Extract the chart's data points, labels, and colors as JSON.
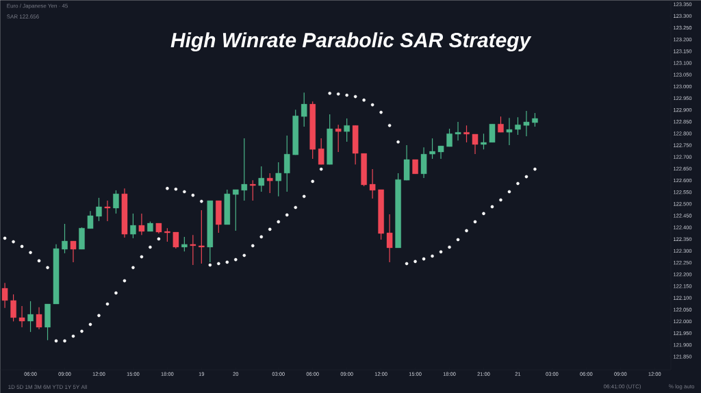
{
  "chart_data": {
    "type": "candlestick",
    "title": "High Winrate Parabolic SAR Strategy",
    "subtitle": "Euro / Japanese Yen · 45",
    "annotations": [
      "SAR 122.656",
      "1D  5D  1M  3M  6M  YTD  1Y  5Y  All",
      "06:41:00 (UTC)",
      "%  log  auto"
    ],
    "categories": [
      null,
      null,
      null,
      "06:00",
      null,
      null,
      null,
      "09:00",
      null,
      null,
      null,
      "12:00",
      null,
      null,
      null,
      "15:00",
      null,
      null,
      null,
      "18:00",
      null,
      null,
      null,
      "19",
      null,
      null,
      null,
      "20",
      null,
      null,
      null,
      null,
      "03:00",
      null,
      null,
      null,
      "06:00",
      null,
      null,
      null,
      "09:00",
      null,
      null,
      null,
      "12:00",
      null,
      null,
      null,
      "15:00",
      null,
      null,
      null,
      "18:00",
      null,
      null,
      null,
      "21:00",
      null,
      null,
      null,
      "21",
      null,
      null,
      null,
      "03:00",
      null,
      null,
      null,
      "06:00",
      null,
      null,
      null,
      "09:00",
      null,
      null,
      null,
      "12:00"
    ],
    "ohlc": [
      [
        122.141,
        122.164,
        122.057,
        122.089
      ],
      [
        122.089,
        122.115,
        122.0,
        122.016
      ],
      [
        122.016,
        122.065,
        121.975,
        122.001
      ],
      [
        122.001,
        122.086,
        121.955,
        122.03
      ],
      [
        122.03,
        122.06,
        121.966,
        121.975
      ],
      [
        121.975,
        122.074,
        121.92,
        122.074
      ],
      [
        122.074,
        122.328,
        122.074,
        122.31
      ],
      [
        122.307,
        122.415,
        122.29,
        122.342
      ],
      [
        122.342,
        122.342,
        122.252,
        122.307
      ],
      [
        122.307,
        122.4,
        122.307,
        122.397
      ],
      [
        122.395,
        122.47,
        122.395,
        122.45
      ],
      [
        122.447,
        122.526,
        122.427,
        122.488
      ],
      [
        122.488,
        122.514,
        122.427,
        122.482
      ],
      [
        122.482,
        122.558,
        122.459,
        122.543
      ],
      [
        122.543,
        122.566,
        122.357,
        122.371
      ],
      [
        122.371,
        122.459,
        122.354,
        122.409
      ],
      [
        122.409,
        122.459,
        122.368,
        122.383
      ],
      [
        122.383,
        122.425,
        122.383,
        122.418
      ],
      [
        122.418,
        122.418,
        122.374,
        122.38
      ],
      [
        122.383,
        122.397,
        122.339,
        122.377
      ],
      [
        122.38,
        122.38,
        122.31,
        122.316
      ],
      [
        122.316,
        122.36,
        122.298,
        122.328
      ],
      [
        122.328,
        122.368,
        122.24,
        122.322
      ],
      [
        122.322,
        122.473,
        122.246,
        122.316
      ],
      [
        122.316,
        122.514,
        122.252,
        122.514
      ],
      [
        122.514,
        122.514,
        122.377,
        122.412
      ],
      [
        122.412,
        122.561,
        122.412,
        122.543
      ],
      [
        122.54,
        122.561,
        122.386,
        122.561
      ],
      [
        122.558,
        122.779,
        122.514,
        122.584
      ],
      [
        122.584,
        122.601,
        122.514,
        122.578
      ],
      [
        122.578,
        122.66,
        122.552,
        122.61
      ],
      [
        122.61,
        122.631,
        122.546,
        122.598
      ],
      [
        122.598,
        122.677,
        122.532,
        122.631
      ],
      [
        122.631,
        122.791,
        122.552,
        122.712
      ],
      [
        122.709,
        122.901,
        122.709,
        122.875
      ],
      [
        122.872,
        122.974,
        122.829,
        122.925
      ],
      [
        122.925,
        122.936,
        122.692,
        122.732
      ],
      [
        122.735,
        122.779,
        122.668,
        122.668
      ],
      [
        122.668,
        122.881,
        122.668,
        122.82
      ],
      [
        122.82,
        122.837,
        122.721,
        122.808
      ],
      [
        122.808,
        122.864,
        122.765,
        122.834
      ],
      [
        122.834,
        122.834,
        122.668,
        122.715
      ],
      [
        122.715,
        122.715,
        122.575,
        122.581
      ],
      [
        122.584,
        122.648,
        122.523,
        122.558
      ],
      [
        122.561,
        122.561,
        122.348,
        122.374
      ],
      [
        122.377,
        122.456,
        122.252,
        122.313
      ],
      [
        122.313,
        122.631,
        122.313,
        122.604
      ],
      [
        122.601,
        122.75,
        122.601,
        122.689
      ],
      [
        122.689,
        122.689,
        122.628,
        122.628
      ],
      [
        122.628,
        122.741,
        122.61,
        122.712
      ],
      [
        122.712,
        122.779,
        122.692,
        122.724
      ],
      [
        122.721,
        122.747,
        122.692,
        122.747
      ],
      [
        122.744,
        122.82,
        122.744,
        122.799
      ],
      [
        122.797,
        122.849,
        122.77,
        122.805
      ],
      [
        122.805,
        122.834,
        122.762,
        122.797
      ],
      [
        122.797,
        122.797,
        122.712,
        122.753
      ],
      [
        122.753,
        122.799,
        122.732,
        122.762
      ],
      [
        122.762,
        122.84,
        122.762,
        122.84
      ],
      [
        122.84,
        122.872,
        122.805,
        122.805
      ],
      [
        122.805,
        122.866,
        122.75,
        122.817
      ],
      [
        122.817,
        122.869,
        122.794,
        122.837
      ],
      [
        122.834,
        122.896,
        122.788,
        122.849
      ],
      [
        122.846,
        122.887,
        122.829,
        122.864
      ],
      null,
      null,
      null,
      null,
      null,
      null,
      null,
      null,
      null,
      null,
      null,
      null,
      null,
      null
    ],
    "colors": [
      "#ef4756",
      "#ef4756",
      "#ef4756",
      "#4cb68a",
      "#ef4756",
      "#4cb68a",
      "#4cb68a",
      "#4cb68a",
      "#ef4756",
      "#4cb68a",
      "#4cb68a",
      "#4cb68a",
      "#ef4756",
      "#4cb68a",
      "#ef4756",
      "#4cb68a",
      "#ef4756",
      "#4cb68a",
      "#ef4756",
      "#ef4756",
      "#ef4756",
      "#4cb68a",
      "#ef4756",
      "#ef4756",
      "#4cb68a",
      "#ef4756",
      "#4cb68a",
      "#4cb68a",
      "#4cb68a",
      "#ef4756",
      "#4cb68a",
      "#ef4756",
      "#4cb68a",
      "#4cb68a",
      "#4cb68a",
      "#4cb68a",
      "#ef4756",
      "#ef4756",
      "#4cb68a",
      "#ef4756",
      "#4cb68a",
      "#ef4756",
      "#ef4756",
      "#ef4756",
      "#ef4756",
      "#ef4756",
      "#4cb68a",
      "#4cb68a",
      "#ef4756",
      "#4cb68a",
      "#4cb68a",
      "#4cb68a",
      "#4cb68a",
      "#4cb68a",
      "#ef4756",
      "#ef4756",
      "#4cb68a",
      "#4cb68a",
      "#ef4756",
      "#4cb68a",
      "#4cb68a",
      "#4cb68a",
      "#4cb68a",
      null,
      null,
      null,
      null,
      null,
      null,
      null,
      null,
      null,
      null,
      null,
      null,
      null,
      null
    ],
    "series": [
      {
        "type": "scatter",
        "color": "#ffffff",
        "values": [
          122.354,
          122.339,
          122.319,
          122.293,
          122.258,
          122.229,
          121.917,
          121.917,
          121.937,
          121.958,
          121.987,
          122.025,
          122.074,
          122.121,
          122.173,
          122.229,
          122.275,
          122.316,
          122.351,
          122.566,
          122.563,
          122.552,
          122.537,
          122.511,
          122.24,
          122.246,
          122.252,
          122.263,
          122.281,
          122.322,
          122.36,
          122.392,
          122.424,
          122.453,
          122.485,
          122.532,
          122.596,
          122.648,
          122.971,
          122.968,
          122.963,
          122.957,
          122.942,
          122.922,
          122.89,
          122.834,
          122.764,
          122.246,
          122.255,
          122.266,
          122.278,
          122.296,
          122.316,
          122.348,
          122.386,
          122.424,
          122.459,
          122.488,
          122.517,
          122.552,
          122.587,
          122.616,
          122.648,
          null,
          null,
          null,
          null,
          null,
          null,
          null,
          null,
          null,
          null,
          null,
          null,
          null,
          null
        ]
      }
    ],
    "marker": "circle",
    "ylim": [
      121.794,
      123.3675
    ],
    "yticks": [
      {
        "value": 121.85,
        "label": "121.850"
      },
      {
        "value": 121.9,
        "label": "121.900"
      },
      {
        "value": 121.95,
        "label": "121.950"
      },
      {
        "value": 122.0,
        "label": "122.000"
      },
      {
        "value": 122.05,
        "label": "122.050"
      },
      {
        "value": 122.1,
        "label": "122.100"
      },
      {
        "value": 122.15,
        "label": "122.150"
      },
      {
        "value": 122.2,
        "label": "122.200"
      },
      {
        "value": 122.25,
        "label": "122.250"
      },
      {
        "value": 122.3,
        "label": "122.300"
      },
      {
        "value": 122.35,
        "label": "122.350"
      },
      {
        "value": 122.4,
        "label": "122.400"
      },
      {
        "value": 122.45,
        "label": "122.450"
      },
      {
        "value": 122.5,
        "label": "122.500"
      },
      {
        "value": 122.55,
        "label": "122.550"
      },
      {
        "value": 122.6,
        "label": "122.600"
      },
      {
        "value": 122.65,
        "label": "122.650"
      },
      {
        "value": 122.7,
        "label": "122.700"
      },
      {
        "value": 122.75,
        "label": "122.750"
      },
      {
        "value": 122.8,
        "label": "122.800"
      },
      {
        "value": 122.85,
        "label": "122.850"
      },
      {
        "value": 122.9,
        "label": "122.900"
      },
      {
        "value": 122.95,
        "label": "122.950"
      },
      {
        "value": 123.0,
        "label": "123.000"
      },
      {
        "value": 123.05,
        "label": "123.050"
      },
      {
        "value": 123.1,
        "label": "123.100"
      },
      {
        "value": 123.15,
        "label": "123.150"
      },
      {
        "value": 123.2,
        "label": "123.200"
      },
      {
        "value": 123.25,
        "label": "123.250"
      },
      {
        "value": 123.3,
        "label": "123.300"
      },
      {
        "value": 123.35,
        "label": "123.350"
      }
    ]
  }
}
